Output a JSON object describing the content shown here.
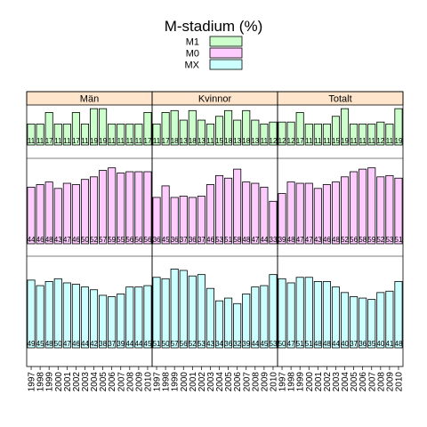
{
  "chart_data": {
    "type": "bar",
    "title": "M-stadium (%)",
    "legend_position": "top",
    "years": [
      "1997",
      "1998",
      "1999",
      "2000",
      "2001",
      "2002",
      "2003",
      "2004",
      "2005",
      "2006",
      "2007",
      "2008",
      "2009",
      "2010"
    ],
    "panels": [
      "Män",
      "Kvinnor",
      "Totalt"
    ],
    "series": [
      {
        "name": "M1",
        "color": "#ccffcc",
        "ylim": [
          0,
          20
        ],
        "values": {
          "Män": [
            11,
            11,
            17,
            11,
            11,
            17,
            11,
            19,
            19,
            11,
            11,
            11,
            11,
            17
          ],
          "Kvinnor": [
            11,
            17,
            18,
            13,
            18,
            13,
            11,
            15,
            18,
            13,
            18,
            13,
            11,
            12
          ],
          "Totalt": [
            12,
            12,
            17,
            11,
            11,
            11,
            15,
            19,
            11,
            11,
            11,
            12,
            11,
            19
          ]
        },
        "labels": {
          "Män": [
            "11",
            "11",
            "17",
            "11",
            "11",
            "17",
            "11",
            "19",
            "19",
            "11",
            "11",
            "11",
            "11",
            "17"
          ],
          "Kvinnor": [
            "11",
            "17",
            "18",
            "13",
            "18",
            "13",
            "11",
            "15",
            "18",
            "13",
            "18",
            "13",
            "11",
            "12"
          ],
          "Totalt": [
            "12",
            "12",
            "17",
            "11",
            "11",
            "11",
            "15",
            "19",
            "11",
            "11",
            "11",
            "12",
            "11",
            "19"
          ]
        }
      },
      {
        "name": "M0",
        "color": "#ffccff",
        "ylim": [
          0,
          65
        ],
        "values": {
          "Män": [
            44,
            46,
            48,
            43,
            47,
            46,
            50,
            52,
            57,
            59,
            55,
            56,
            56,
            56
          ],
          "Kvinnor": [
            36,
            45,
            36,
            37,
            36,
            37,
            46,
            53,
            51,
            58,
            48,
            47,
            44,
            33
          ],
          "Totalt": [
            39,
            48,
            47,
            47,
            43,
            46,
            48,
            52,
            56,
            58,
            59,
            52,
            53,
            51
          ]
        },
        "labels": {
          "Män": [
            "44",
            "46",
            "48",
            "43",
            "47",
            "46",
            "50",
            "52",
            "57",
            "59",
            "55",
            "56",
            "56",
            "56"
          ],
          "Kvinnor": [
            "36",
            "45",
            "36",
            "37",
            "36",
            "37",
            "46",
            "53",
            "51",
            "58",
            "48",
            "47",
            "44",
            "33"
          ],
          "Totalt": [
            "39",
            "48",
            "47",
            "47",
            "43",
            "46",
            "48",
            "52",
            "56",
            "58",
            "59",
            "52",
            "53",
            "51"
          ]
        }
      },
      {
        "name": "MX",
        "color": "#ccffff",
        "ylim": [
          0,
          65
        ],
        "values": {
          "Män": [
            49,
            45,
            48,
            50,
            47,
            46,
            44,
            42,
            38,
            37,
            39,
            44,
            44,
            45
          ],
          "Kvinnor": [
            51,
            50,
            57,
            56,
            52,
            53,
            43,
            34,
            36,
            32,
            39,
            44,
            45,
            53
          ],
          "Totalt": [
            50,
            47,
            51,
            51,
            48,
            48,
            44,
            40,
            37,
            36,
            35,
            40,
            41,
            48
          ]
        },
        "labels": {
          "Män": [
            "49",
            "45",
            "48",
            "50",
            "47",
            "46",
            "44",
            "42",
            "38",
            "37",
            "39",
            "44",
            "44",
            "45"
          ],
          "Kvinnor": [
            "51",
            "50",
            "57",
            "56",
            "52",
            "53",
            "43",
            "34",
            "36",
            "32",
            "39",
            "44",
            "45",
            "53"
          ],
          "Totalt": [
            "50",
            "47",
            "51",
            "51",
            "48",
            "48",
            "44",
            "40",
            "37",
            "36",
            "35",
            "40",
            "41",
            "48"
          ]
        }
      }
    ]
  }
}
